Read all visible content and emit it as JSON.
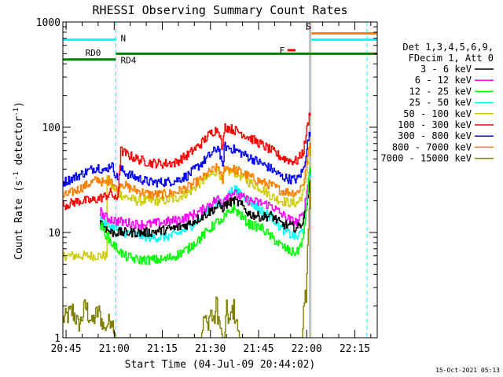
{
  "chart_data": {
    "type": "line",
    "title": "RHESSI Observing Summary Count Rates",
    "xlabel": "Start Time (04-Jul-09 20:44:02)",
    "ylabel_main": "Count Rate (s",
    "ylabel_sup1": "-1",
    "ylabel_mid": " detector",
    "ylabel_sup2": "-1",
    "ylabel_end": ")",
    "yscale": "log",
    "ylim": [
      1,
      1000
    ],
    "xlim_minutes": [
      -1,
      97
    ],
    "x_ticks": [
      {
        "label": "20:45",
        "t": 0
      },
      {
        "label": "21:00",
        "t": 15
      },
      {
        "label": "21:15",
        "t": 30
      },
      {
        "label": "21:30",
        "t": 45
      },
      {
        "label": "21:45",
        "t": 60
      },
      {
        "label": "22:00",
        "t": 75
      },
      {
        "label": "22:15",
        "t": 90
      }
    ],
    "y_ticks": [
      {
        "label": "1",
        "v": 1
      },
      {
        "label": "10",
        "v": 10
      },
      {
        "label": "100",
        "v": 100
      },
      {
        "label": "1000",
        "v": 1000
      }
    ],
    "legend_header": [
      "Det 1,3,4,5,6,9,",
      "FDecim 1, Att 0"
    ],
    "legend_position": "right",
    "series": [
      {
        "name": "3 - 6 keV",
        "color": "#000000",
        "points": [
          [
            10.5,
            13
          ],
          [
            12,
            11
          ],
          [
            14,
            10
          ],
          [
            18,
            10
          ],
          [
            22,
            10
          ],
          [
            26,
            10
          ],
          [
            30,
            10.5
          ],
          [
            34,
            11
          ],
          [
            38,
            12
          ],
          [
            42,
            14
          ],
          [
            45,
            16
          ],
          [
            47.5,
            18
          ],
          [
            48.7,
            17
          ],
          [
            49.3,
            18
          ],
          [
            52,
            20
          ],
          [
            54,
            19
          ],
          [
            57,
            15
          ],
          [
            61,
            14
          ],
          [
            64,
            14.5
          ],
          [
            67,
            12
          ],
          [
            70,
            11.5
          ],
          [
            72,
            11
          ],
          [
            74,
            13
          ],
          [
            75,
            20
          ],
          [
            76,
            30
          ]
        ]
      },
      {
        "name": "6 - 12 keV",
        "color": "#ff00ff",
        "points": [
          [
            10.5,
            16
          ],
          [
            12,
            14
          ],
          [
            15,
            13
          ],
          [
            18,
            12.5
          ],
          [
            22,
            12
          ],
          [
            26,
            12
          ],
          [
            30,
            12.5
          ],
          [
            34,
            13
          ],
          [
            38,
            14
          ],
          [
            42,
            16
          ],
          [
            45,
            19
          ],
          [
            47.5,
            21
          ],
          [
            48.7,
            19
          ],
          [
            49.3,
            22
          ],
          [
            52,
            24
          ],
          [
            54,
            22
          ],
          [
            57,
            20
          ],
          [
            61,
            19
          ],
          [
            64,
            18
          ],
          [
            67,
            15
          ],
          [
            70,
            13
          ],
          [
            72,
            12.5
          ],
          [
            74,
            15
          ],
          [
            75,
            25
          ],
          [
            76,
            40
          ]
        ]
      },
      {
        "name": "12 - 25 keV",
        "color": "#00ff00",
        "points": [
          [
            10.5,
            12
          ],
          [
            12,
            10
          ],
          [
            14,
            8
          ],
          [
            16,
            7
          ],
          [
            18,
            6
          ],
          [
            22,
            5.5
          ],
          [
            26,
            5.5
          ],
          [
            30,
            5.5
          ],
          [
            34,
            6
          ],
          [
            38,
            7
          ],
          [
            42,
            9
          ],
          [
            45,
            11
          ],
          [
            47.5,
            13
          ],
          [
            48.7,
            12
          ],
          [
            49.3,
            14
          ],
          [
            52,
            17
          ],
          [
            54,
            15
          ],
          [
            57,
            12
          ],
          [
            61,
            11
          ],
          [
            64,
            9
          ],
          [
            67,
            7.5
          ],
          [
            70,
            6.5
          ],
          [
            72,
            6.5
          ],
          [
            74,
            9
          ],
          [
            75,
            20
          ],
          [
            76,
            45
          ]
        ]
      },
      {
        "name": "25 - 50 keV",
        "color": "#00ffff",
        "points": [
          [
            10.5,
            14
          ],
          [
            12,
            12
          ],
          [
            15,
            11
          ],
          [
            18,
            10
          ],
          [
            22,
            9.5
          ],
          [
            26,
            9
          ],
          [
            30,
            9
          ],
          [
            34,
            9.5
          ],
          [
            38,
            11
          ],
          [
            42,
            14
          ],
          [
            45,
            17
          ],
          [
            47.5,
            19
          ],
          [
            48.7,
            18
          ],
          [
            49.3,
            20
          ],
          [
            52,
            26
          ],
          [
            54,
            24
          ],
          [
            57,
            20
          ],
          [
            61,
            16
          ],
          [
            64,
            14
          ],
          [
            67,
            11
          ],
          [
            70,
            9.5
          ],
          [
            72,
            9
          ],
          [
            74,
            11
          ],
          [
            75,
            22
          ],
          [
            76,
            40
          ]
        ]
      },
      {
        "name": "50 - 100 keV",
        "color": "#cccc00",
        "points": [
          [
            -1,
            6
          ],
          [
            12.5,
            6
          ],
          [
            12.5,
            32
          ],
          [
            14,
            28
          ],
          [
            16,
            24
          ],
          [
            18,
            22
          ],
          [
            22,
            20
          ],
          [
            26,
            20
          ],
          [
            30,
            20
          ],
          [
            34,
            21
          ],
          [
            38,
            24
          ],
          [
            42,
            30
          ],
          [
            45,
            35
          ],
          [
            47.5,
            40
          ],
          [
            48.7,
            28
          ],
          [
            49.3,
            38
          ],
          [
            52,
            38
          ],
          [
            54,
            35
          ],
          [
            57,
            30
          ],
          [
            61,
            26
          ],
          [
            64,
            22
          ],
          [
            67,
            20
          ],
          [
            70,
            19
          ],
          [
            72,
            19
          ],
          [
            74,
            24
          ],
          [
            75,
            40
          ],
          [
            76,
            60
          ]
        ]
      },
      {
        "name": "100 - 300 keV",
        "color": "#ff0000",
        "points": [
          [
            -1,
            18
          ],
          [
            4,
            20
          ],
          [
            8,
            20
          ],
          [
            12,
            22
          ],
          [
            14,
            24
          ],
          [
            15.5,
            20
          ],
          [
            16,
            22
          ],
          [
            17,
            60
          ],
          [
            19,
            55
          ],
          [
            22,
            50
          ],
          [
            26,
            46
          ],
          [
            30,
            45
          ],
          [
            34,
            46
          ],
          [
            38,
            55
          ],
          [
            42,
            70
          ],
          [
            45,
            88
          ],
          [
            47.5,
            98
          ],
          [
            48.7,
            60
          ],
          [
            49.3,
            102
          ],
          [
            52,
            95
          ],
          [
            54,
            90
          ],
          [
            57,
            80
          ],
          [
            61,
            68
          ],
          [
            64,
            60
          ],
          [
            67,
            52
          ],
          [
            70,
            48
          ],
          [
            72,
            48
          ],
          [
            74,
            60
          ],
          [
            75,
            95
          ],
          [
            76,
            140
          ]
        ]
      },
      {
        "name": "300 - 800 keV",
        "color": "#0000ff",
        "points": [
          [
            -1,
            30
          ],
          [
            4,
            35
          ],
          [
            8,
            40
          ],
          [
            10,
            42
          ],
          [
            12,
            38
          ],
          [
            14,
            45
          ],
          [
            15.5,
            35
          ],
          [
            16,
            32
          ],
          [
            17,
            40
          ],
          [
            19,
            36
          ],
          [
            22,
            33
          ],
          [
            26,
            30
          ],
          [
            30,
            30
          ],
          [
            34,
            31
          ],
          [
            38,
            35
          ],
          [
            42,
            45
          ],
          [
            45,
            55
          ],
          [
            47.5,
            65
          ],
          [
            48.7,
            40
          ],
          [
            49.3,
            66
          ],
          [
            52,
            62
          ],
          [
            54,
            58
          ],
          [
            57,
            52
          ],
          [
            61,
            45
          ],
          [
            64,
            40
          ],
          [
            67,
            34
          ],
          [
            70,
            32
          ],
          [
            72,
            32
          ],
          [
            74,
            40
          ],
          [
            75,
            65
          ],
          [
            76,
            90
          ]
        ]
      },
      {
        "name": "800 - 7000 keV",
        "color": "#ff8000",
        "points": [
          [
            -1,
            22
          ],
          [
            4,
            26
          ],
          [
            8,
            30
          ],
          [
            10,
            32
          ],
          [
            12,
            29
          ],
          [
            14,
            33
          ],
          [
            15.5,
            26
          ],
          [
            16,
            24
          ],
          [
            17,
            30
          ],
          [
            19,
            27
          ],
          [
            22,
            25
          ],
          [
            26,
            23
          ],
          [
            30,
            23
          ],
          [
            34,
            24
          ],
          [
            38,
            27
          ],
          [
            42,
            32
          ],
          [
            45,
            38
          ],
          [
            47.5,
            42
          ],
          [
            48.7,
            30
          ],
          [
            49.3,
            42
          ],
          [
            52,
            40
          ],
          [
            54,
            38
          ],
          [
            57,
            34
          ],
          [
            61,
            30
          ],
          [
            64,
            28
          ],
          [
            67,
            25
          ],
          [
            70,
            24
          ],
          [
            72,
            24
          ],
          [
            74,
            30
          ],
          [
            75,
            48
          ],
          [
            76,
            70
          ]
        ]
      },
      {
        "name": "7000 - 15000 keV",
        "color": "#808000",
        "points": [
          [
            -1,
            1.5
          ],
          [
            2,
            1.8
          ],
          [
            4,
            1.3
          ],
          [
            6,
            2.0
          ],
          [
            8,
            1.4
          ],
          [
            10,
            1.8
          ],
          [
            12,
            1.2
          ],
          [
            14,
            1.6
          ],
          [
            15.5,
            1.0
          ],
          [
            42,
            1.0
          ],
          [
            43,
            1.6
          ],
          [
            44,
            1.3
          ],
          [
            45,
            1.8
          ],
          [
            46,
            1.4
          ],
          [
            47,
            2.2
          ],
          [
            47.5,
            1.5
          ],
          [
            48.7,
            1.0
          ],
          [
            49.3,
            1.0
          ],
          [
            50,
            1.8
          ],
          [
            51,
            1.4
          ],
          [
            52,
            2.0
          ],
          [
            53,
            1.5
          ],
          [
            54,
            1.0
          ],
          [
            73.5,
            1.0
          ],
          [
            74.5,
            3
          ],
          [
            75.5,
            8
          ],
          [
            76,
            20
          ]
        ]
      }
    ],
    "flags": [
      {
        "label": "N",
        "color": "#00ffff",
        "y": 680,
        "x_start": -1,
        "x_end": 15.5,
        "label_t": 17
      },
      {
        "label": "RD0",
        "color": "#008000",
        "y": 440,
        "x_start": -1,
        "x_end": 15.5,
        "label_t": 6
      },
      {
        "label": "RD4",
        "color": "#008000",
        "y": 500,
        "x_start": 15.5,
        "x_end": 97,
        "label_t": 17
      },
      {
        "label": "F",
        "color": "#ff0000",
        "y": 540,
        "x_start": 69,
        "x_end": 71.5,
        "label_t": 66.5
      },
      {
        "label": "S",
        "color": "#ff8000",
        "y": 780,
        "x_start": 76.5,
        "x_end": 97,
        "label_t": 74.8
      },
      {
        "label": "",
        "color": "#00ffff",
        "y": 680,
        "x_start": 76.5,
        "x_end": 97,
        "label_t": 0
      }
    ],
    "vlines": [
      {
        "t": -1,
        "color": "#00ffff",
        "style": "solid"
      },
      {
        "t": 15.5,
        "color": "#00ffff",
        "style": "dashed"
      },
      {
        "t": 75.8,
        "color": "#00ffff",
        "style": "solid"
      },
      {
        "t": 76.3,
        "color": "#ff8000",
        "style": "solid"
      },
      {
        "t": 93.8,
        "color": "#00ffff",
        "style": "dashed"
      }
    ],
    "timestamp": "15-Oct-2021 05:13",
    "grid": false
  }
}
